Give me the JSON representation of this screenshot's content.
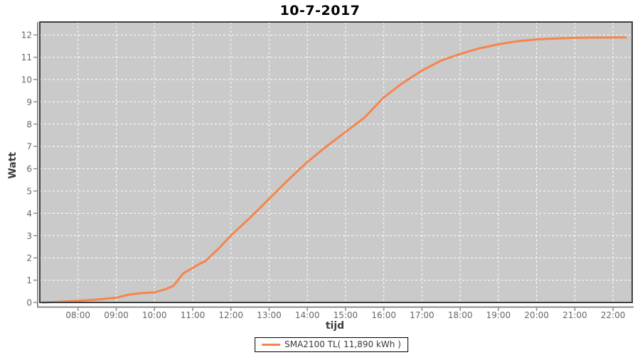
{
  "title": "10-7-2017",
  "colors": {
    "page_bg": "#ffffff",
    "plot_bg": "#cacaca",
    "plot_border": "#3f3f3f",
    "gridline": "#ffffff",
    "axis_line": "#8e8e8e",
    "tick_label": "#66666b",
    "axis_title": "#3d3d3d",
    "series_orange": "#f5854e"
  },
  "legend": {
    "swatch_icon": "line-swatch-icon"
  },
  "chart_data": {
    "type": "line",
    "title": "10-7-2017",
    "xlabel": "tijd",
    "ylabel": "Watt",
    "xlim_hours": [
      7.0,
      22.5
    ],
    "ylim": [
      0,
      12.58
    ],
    "grid": true,
    "legend_position": "bottom-center",
    "y_ticks": [
      0,
      1,
      2,
      3,
      4,
      5,
      6,
      7,
      8,
      9,
      10,
      11,
      12
    ],
    "x_ticks": {
      "hours": [
        8,
        9,
        10,
        11,
        12,
        13,
        14,
        15,
        16,
        17,
        18,
        19,
        20,
        21,
        22
      ],
      "labels": [
        "08:00",
        "09:00",
        "10:00",
        "11:00",
        "12:00",
        "13:00",
        "14:00",
        "15:00",
        "16:00",
        "17:00",
        "18:00",
        "19:00",
        "20:00",
        "21:00",
        "22:00"
      ]
    },
    "series": [
      {
        "name": "SMA2100 TL( 11,890 kWh )",
        "color": "#f5854e",
        "x_hours": [
          7.08,
          7.5,
          8.0,
          8.5,
          9.0,
          9.33,
          9.67,
          10.0,
          10.33,
          10.5,
          10.75,
          11.0,
          11.17,
          11.33,
          11.67,
          12.0,
          12.5,
          13.0,
          13.5,
          14.0,
          14.5,
          15.0,
          15.5,
          16.0,
          16.5,
          17.0,
          17.5,
          18.0,
          18.5,
          19.0,
          19.5,
          20.0,
          20.5,
          21.0,
          21.5,
          22.0,
          22.33
        ],
        "values": [
          0.0,
          0.03,
          0.07,
          0.13,
          0.21,
          0.35,
          0.42,
          0.45,
          0.62,
          0.75,
          1.3,
          1.55,
          1.72,
          1.85,
          2.4,
          3.0,
          3.8,
          4.65,
          5.5,
          6.3,
          7.0,
          7.65,
          8.3,
          9.2,
          9.85,
          10.4,
          10.85,
          11.15,
          11.4,
          11.58,
          11.72,
          11.8,
          11.84,
          11.87,
          11.88,
          11.89,
          11.89
        ]
      }
    ]
  }
}
